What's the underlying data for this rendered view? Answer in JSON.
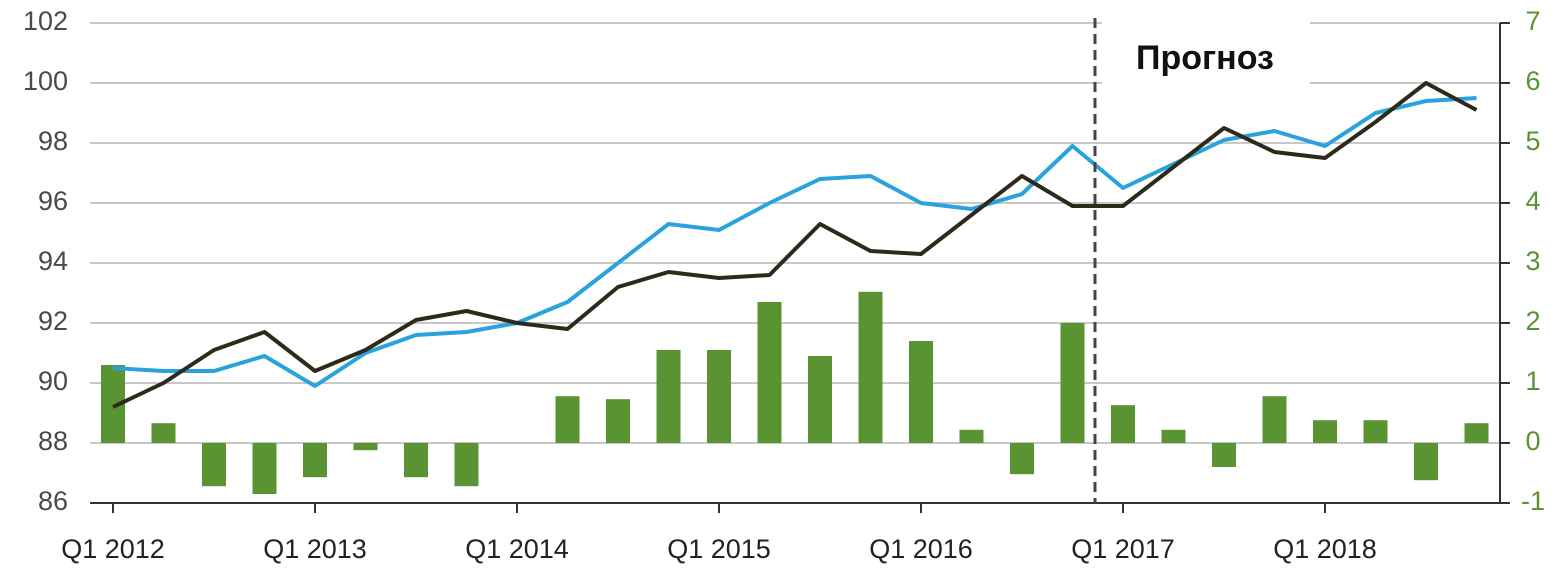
{
  "chart_data": {
    "type": "bar_line",
    "categories": [
      "Q1 2012",
      null,
      null,
      null,
      "Q1 2013",
      null,
      null,
      null,
      "Q1 2014",
      null,
      null,
      null,
      "Q1 2015",
      null,
      null,
      null,
      "Q1 2016",
      null,
      null,
      null,
      "Q1 2017",
      null,
      null,
      null,
      "Q1 2018",
      null,
      null,
      null
    ],
    "series": [
      {
        "type": "line",
        "color": "#29a3dc",
        "axis": "y",
        "values": [
          90.5,
          90.4,
          90.4,
          90.9,
          89.9,
          91.0,
          91.6,
          91.7,
          92.0,
          92.7,
          94.0,
          95.3,
          95.1,
          96.0,
          96.8,
          96.9,
          96.0,
          95.8,
          96.3,
          97.9,
          96.5,
          97.3,
          98.1,
          98.4,
          97.9,
          99.0,
          99.4,
          99.5
        ]
      },
      {
        "type": "line",
        "color": "#2e2a1a",
        "axis": "y",
        "values": [
          89.2,
          90.0,
          91.1,
          91.7,
          90.4,
          91.1,
          92.1,
          92.4,
          92.0,
          91.8,
          93.2,
          93.7,
          93.5,
          93.6,
          95.3,
          94.4,
          94.3,
          95.6,
          96.9,
          95.9,
          95.9,
          97.2,
          98.5,
          97.7,
          97.5,
          98.7,
          100.0,
          99.1
        ]
      },
      {
        "type": "bar",
        "color": "#5a9331",
        "axis": "y2",
        "values": [
          1.3,
          0.33,
          -0.72,
          -0.85,
          -0.57,
          -0.12,
          -0.57,
          -0.72,
          0,
          0.78,
          0.73,
          1.55,
          1.55,
          2.35,
          1.45,
          2.52,
          1.7,
          0.22,
          -0.52,
          2.0,
          0.63,
          0.22,
          -0.4,
          0.78,
          0.38,
          0.38,
          -0.62,
          0.33
        ]
      }
    ],
    "ylim": [
      86,
      102
    ],
    "yticks": [
      86,
      88,
      90,
      92,
      94,
      96,
      98,
      100,
      102
    ],
    "y2lim": [
      -1,
      7
    ],
    "y2ticks": [
      -1,
      0,
      1,
      2,
      3,
      4,
      5,
      6,
      7
    ],
    "grid": true,
    "annotation": "Прогноз"
  }
}
